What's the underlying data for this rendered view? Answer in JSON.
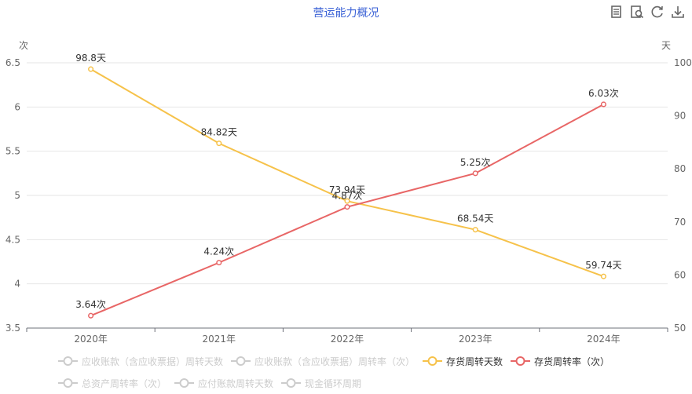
{
  "toolbar": {
    "icons": [
      "data-view-icon",
      "restore-zoom-icon",
      "refresh-icon",
      "download-icon"
    ]
  },
  "legend": {
    "items": [
      {
        "label": "应收账款（含应收票据）周转天数",
        "active": false,
        "color": "#cccccc"
      },
      {
        "label": "应收账款（含应收票据）周转率（次）",
        "active": false,
        "color": "#cccccc"
      },
      {
        "label": "存货周转天数",
        "active": true,
        "color": "#f6c24a"
      },
      {
        "label": "存货周转率（次）",
        "active": true,
        "color": "#e86666"
      },
      {
        "label": "总资产周转率（次）",
        "active": false,
        "color": "#cccccc"
      },
      {
        "label": "应付账款周转天数",
        "active": false,
        "color": "#cccccc"
      },
      {
        "label": "现金循环周期",
        "active": false,
        "color": "#cccccc"
      }
    ]
  },
  "chart_data": {
    "type": "line",
    "title": "营运能力概况",
    "categories": [
      "2020年",
      "2021年",
      "2022年",
      "2023年",
      "2024年"
    ],
    "y_left": {
      "unit": "次",
      "min": 3.5,
      "max": 6.5,
      "ticks": [
        "3.5",
        "4",
        "4.5",
        "5",
        "5.5",
        "6",
        "6.5"
      ]
    },
    "y_right": {
      "unit": "天",
      "min": 50,
      "max": 100,
      "ticks": [
        "50",
        "60",
        "70",
        "80",
        "90",
        "100"
      ]
    },
    "grid": true,
    "legend_position": "bottom",
    "series": [
      {
        "name": "存货周转天数",
        "axis": "right",
        "color": "#f6c24a",
        "values": [
          98.8,
          84.82,
          73.94,
          68.54,
          59.74
        ],
        "labels": [
          "98.8天",
          "84.82天",
          "73.94天",
          "68.54天",
          "59.74天"
        ]
      },
      {
        "name": "存货周转率（次）",
        "axis": "left",
        "color": "#e86666",
        "values": [
          3.64,
          4.24,
          4.87,
          5.25,
          6.03
        ],
        "labels": [
          "3.64次",
          "4.24次",
          "4.87次",
          "5.25次",
          "6.03次"
        ]
      }
    ]
  }
}
